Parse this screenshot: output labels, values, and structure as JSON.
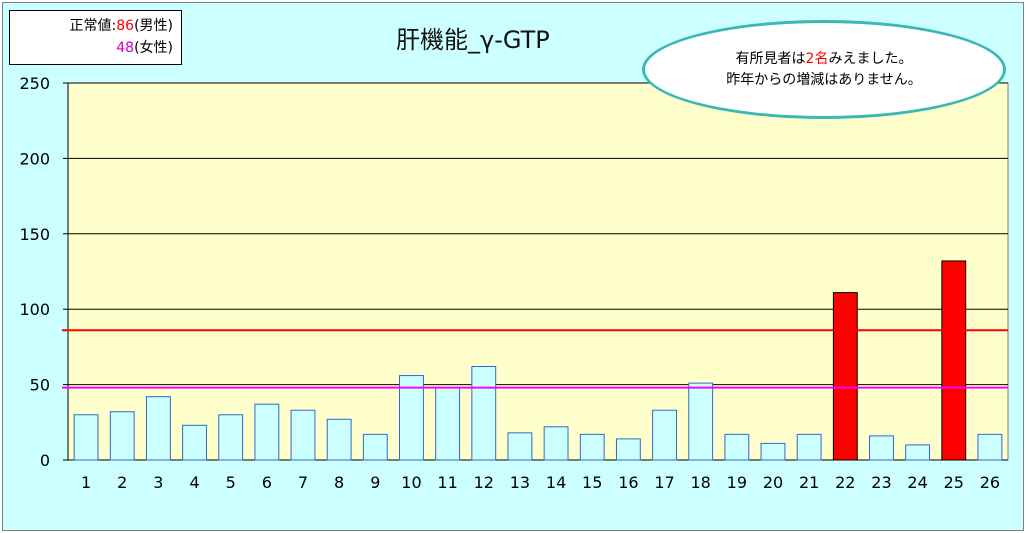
{
  "legend": {
    "prefix": "正常値:",
    "male_value": "86",
    "male_label": "(男性)",
    "female_value": "48",
    "female_label": "(女性)",
    "male_color": "#ff0000",
    "female_color": "#cc00cc"
  },
  "callout": {
    "line1_pre": "有所見者は",
    "line1_num": "2名",
    "line1_post": "みえました。",
    "line2": "昨年からの増減はありません。"
  },
  "chart_data": {
    "type": "bar",
    "title": "肝機能_γ-GTP",
    "categories": [
      "1",
      "2",
      "3",
      "4",
      "5",
      "6",
      "7",
      "8",
      "9",
      "10",
      "11",
      "12",
      "13",
      "14",
      "15",
      "16",
      "17",
      "18",
      "19",
      "20",
      "21",
      "22",
      "23",
      "24",
      "25",
      "26"
    ],
    "values": [
      30,
      32,
      42,
      23,
      30,
      37,
      33,
      27,
      17,
      56,
      48,
      62,
      18,
      22,
      17,
      14,
      33,
      51,
      17,
      11,
      17,
      111,
      16,
      10,
      132,
      17
    ],
    "highlighted": [
      "22",
      "25"
    ],
    "yticks": [
      0,
      50,
      100,
      150,
      200,
      250
    ],
    "ylim": [
      0,
      250
    ],
    "reference_lines": [
      {
        "label": "男性",
        "value": 86,
        "color": "#ff0000"
      },
      {
        "label": "女性",
        "value": 48,
        "color": "#ff00ff"
      }
    ],
    "bar_color": "#ccffff",
    "bar_border": "#3366cc",
    "highlight_color": "#ff0000",
    "plot_background": "#ffffcc",
    "grid": true
  }
}
